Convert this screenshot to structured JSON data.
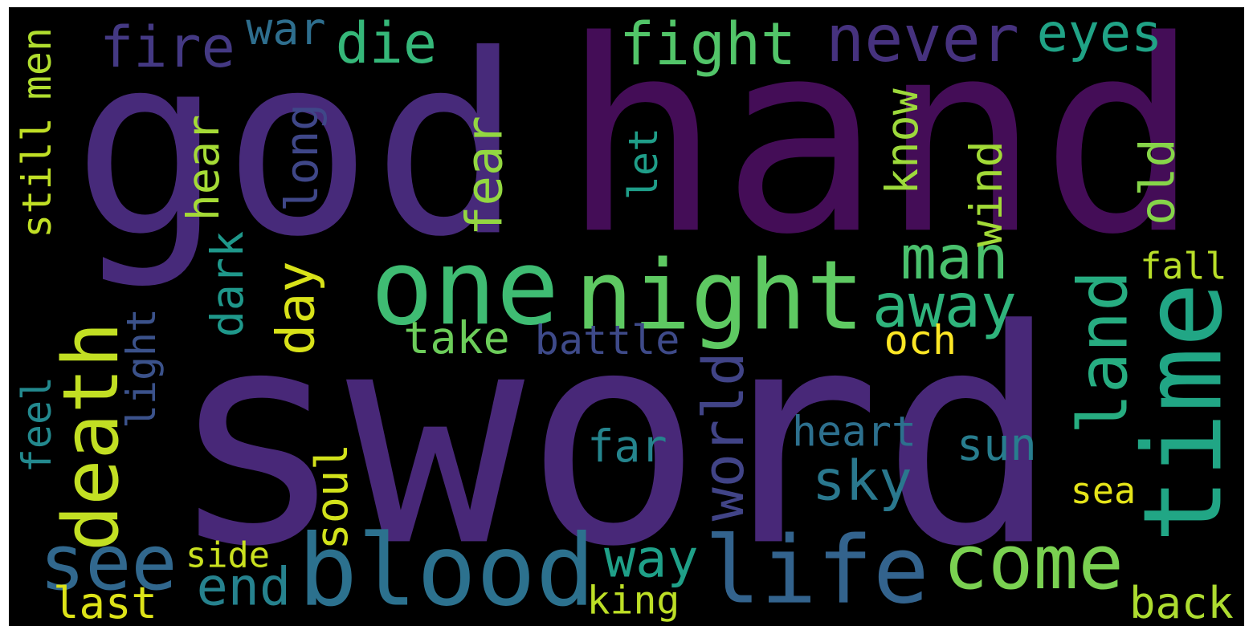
{
  "words": [
    {
      "text": "sword",
      "color": "#482878",
      "rot": false
    },
    {
      "text": "hand",
      "color": "#440d57",
      "rot": false
    },
    {
      "text": "god",
      "color": "#472a7a",
      "rot": false
    },
    {
      "text": "time",
      "color": "#21a685",
      "rot": true
    },
    {
      "text": "one",
      "color": "#3fbc73",
      "rot": false
    },
    {
      "text": "night",
      "color": "#5ec962",
      "rot": false
    },
    {
      "text": "blood",
      "color": "#2c718e",
      "rot": false
    },
    {
      "text": "life",
      "color": "#33638d",
      "rot": false
    },
    {
      "text": "come",
      "color": "#7ad151",
      "rot": false
    },
    {
      "text": "see",
      "color": "#31688e",
      "rot": false
    },
    {
      "text": "death",
      "color": "#c2df23",
      "rot": true
    },
    {
      "text": "land",
      "color": "#27ad81",
      "rot": true
    },
    {
      "text": "never",
      "color": "#46327e",
      "rot": false
    },
    {
      "text": "eyes",
      "color": "#20a386",
      "rot": false
    },
    {
      "text": "fight",
      "color": "#52c569",
      "rot": false
    },
    {
      "text": "fire",
      "color": "#443983",
      "rot": false
    },
    {
      "text": "die",
      "color": "#35b779",
      "rot": false
    },
    {
      "text": "man",
      "color": "#4ac16d",
      "rot": false
    },
    {
      "text": "away",
      "color": "#2fb47c",
      "rot": false
    },
    {
      "text": "world",
      "color": "#414487",
      "rot": true
    },
    {
      "text": "light",
      "color": "#3b528b",
      "rot": true
    },
    {
      "text": "day",
      "color": "#d8e219",
      "rot": true
    },
    {
      "text": "take",
      "color": "#6ccd5a",
      "rot": false
    },
    {
      "text": "sky",
      "color": "#2a788e",
      "rot": false
    },
    {
      "text": "end",
      "color": "#26828e",
      "rot": false
    },
    {
      "text": "way",
      "color": "#1fa088",
      "rot": false
    },
    {
      "text": "dark",
      "color": "#1f988b",
      "rot": true
    },
    {
      "text": "heart",
      "color": "#2d708e",
      "rot": false
    },
    {
      "text": "battle",
      "color": "#3e4a89",
      "rot": false
    },
    {
      "text": "far",
      "color": "#25858e",
      "rot": false
    },
    {
      "text": "sun",
      "color": "#287d8e",
      "rot": false
    },
    {
      "text": "fall",
      "color": "#b8de29",
      "rot": false
    },
    {
      "text": "och",
      "color": "#fde725",
      "rot": false
    },
    {
      "text": "back",
      "color": "#addc30",
      "rot": false
    },
    {
      "text": "last",
      "color": "#dde318",
      "rot": false
    },
    {
      "text": "king",
      "color": "#bddf26",
      "rot": false
    },
    {
      "text": "sea",
      "color": "#e5e419",
      "rot": false
    },
    {
      "text": "war",
      "color": "#2e6e8e",
      "rot": false
    },
    {
      "text": "side",
      "color": "#cae11f",
      "rot": false
    },
    {
      "text": "hear",
      "color": "#a5db36",
      "rot": true
    },
    {
      "text": "fear",
      "color": "#93d741",
      "rot": true
    },
    {
      "text": "long",
      "color": "#3f4788",
      "rot": true
    },
    {
      "text": "know",
      "color": "#9dd93b",
      "rot": true
    },
    {
      "text": "wind",
      "color": "#a2da37",
      "rot": true
    },
    {
      "text": "old",
      "color": "#86d549",
      "rot": true
    },
    {
      "text": "let",
      "color": "#1f9e89",
      "rot": true
    },
    {
      "text": "soul",
      "color": "#d2e21b",
      "rot": true
    },
    {
      "text": "still",
      "color": "#c0df25",
      "rot": true
    },
    {
      "text": "men",
      "color": "#b0dd2f",
      "rot": true
    },
    {
      "text": "feel",
      "color": "#23898e",
      "rot": true
    }
  ]
}
